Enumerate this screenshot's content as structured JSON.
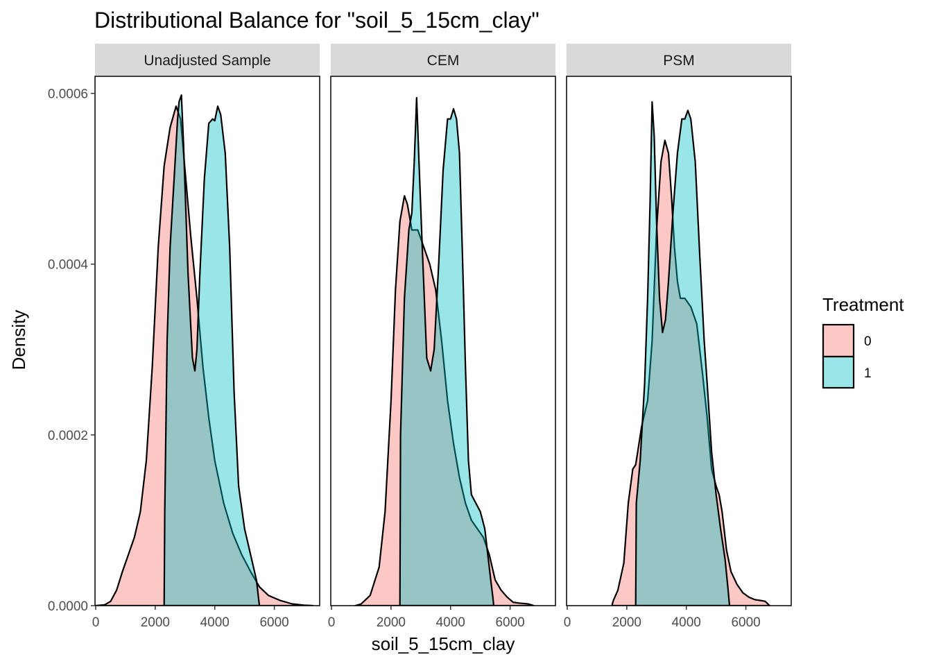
{
  "chart_data": {
    "type": "area",
    "subtype": "density",
    "title": "Distributional Balance for \"soil_5_15cm_clay\"",
    "xlabel": "soil_5_15cm_clay",
    "ylabel": "Density",
    "xlim": [
      0,
      7500
    ],
    "ylim": [
      0,
      0.00062
    ],
    "x_ticks": [
      0,
      2000,
      4000,
      6000
    ],
    "x_tick_labels": [
      "0",
      "2000",
      "4000",
      "6000"
    ],
    "y_ticks": [
      0,
      0.0002,
      0.0004,
      0.0006
    ],
    "y_tick_labels": [
      "0.0000",
      "0.0002",
      "0.0004",
      "0.0006"
    ],
    "grid": false,
    "legend": {
      "title": "Treatment",
      "position": "right",
      "entries": [
        {
          "label": "0",
          "color": "#F8766D"
        },
        {
          "label": "1",
          "color": "#00BFC4"
        }
      ]
    },
    "fill_alpha": 0.4,
    "panels": [
      {
        "name": "Unadjusted Sample",
        "series": [
          {
            "name": "0",
            "color": "#F8766D",
            "points": [
              [
                0,
                0
              ],
              [
                300,
                1e-06
              ],
              [
                500,
                5e-06
              ],
              [
                700,
                1.8e-05
              ],
              [
                900,
                4e-05
              ],
              [
                1100,
                6e-05
              ],
              [
                1300,
                8e-05
              ],
              [
                1500,
                0.00011
              ],
              [
                1700,
                0.00017
              ],
              [
                1900,
                0.00028
              ],
              [
                2100,
                0.00042
              ],
              [
                2300,
                0.000515
              ],
              [
                2500,
                0.00056
              ],
              [
                2700,
                0.000585
              ],
              [
                2850,
                0.00057
              ],
              [
                3000,
                0.00051
              ],
              [
                3200,
                0.00043
              ],
              [
                3400,
                0.00036
              ],
              [
                3600,
                0.00028
              ],
              [
                3800,
                0.00022
              ],
              [
                4000,
                0.00017
              ],
              [
                4300,
                0.00012
              ],
              [
                4600,
                8.5e-05
              ],
              [
                4900,
                6e-05
              ],
              [
                5200,
                4e-05
              ],
              [
                5500,
                2.2e-05
              ],
              [
                5800,
                1.2e-05
              ],
              [
                6200,
                6e-06
              ],
              [
                6600,
                2e-06
              ],
              [
                7000,
                5e-07
              ],
              [
                7300,
                0
              ]
            ]
          },
          {
            "name": "1",
            "color": "#00BFC4",
            "points": [
              [
                2300,
                0
              ],
              [
                2320,
                0.00011
              ],
              [
                2400,
                0.00031
              ],
              [
                2500,
                0.00042
              ],
              [
                2650,
                0.00051
              ],
              [
                2750,
                0.00057
              ],
              [
                2800,
                0.00059
              ],
              [
                2880,
                0.000598
              ],
              [
                2950,
                0.00054
              ],
              [
                3100,
                0.00039
              ],
              [
                3250,
                0.00029
              ],
              [
                3330,
                0.000275
              ],
              [
                3400,
                0.0003
              ],
              [
                3500,
                0.00039
              ],
              [
                3650,
                0.0005
              ],
              [
                3800,
                0.000565
              ],
              [
                3930,
                0.00057
              ],
              [
                4000,
                0.000568
              ],
              [
                4100,
                0.000585
              ],
              [
                4200,
                0.000575
              ],
              [
                4350,
                0.00053
              ],
              [
                4500,
                0.00042
              ],
              [
                4650,
                0.00025
              ],
              [
                4800,
                0.00014
              ],
              [
                5000,
                9e-05
              ],
              [
                5200,
                6e-05
              ],
              [
                5400,
                3e-05
              ],
              [
                5500,
                0
              ]
            ]
          }
        ]
      },
      {
        "name": "CEM",
        "series": [
          {
            "name": "0",
            "color": "#F8766D",
            "points": [
              [
                800,
                0
              ],
              [
                1000,
                2e-06
              ],
              [
                1300,
                1.2e-05
              ],
              [
                1600,
                4.5e-05
              ],
              [
                1800,
                0.00011
              ],
              [
                2000,
                0.00024
              ],
              [
                2150,
                0.00037
              ],
              [
                2300,
                0.00045
              ],
              [
                2450,
                0.00048
              ],
              [
                2550,
                0.00047
              ],
              [
                2700,
                0.00044
              ],
              [
                2900,
                0.00044
              ],
              [
                3100,
                0.00042
              ],
              [
                3300,
                0.0004
              ],
              [
                3500,
                0.00037
              ],
              [
                3700,
                0.00031
              ],
              [
                3900,
                0.00024
              ],
              [
                4100,
                0.00019
              ],
              [
                4300,
                0.00015
              ],
              [
                4500,
                0.00012
              ],
              [
                4700,
                0.0001
              ],
              [
                4900,
                9e-05
              ],
              [
                5100,
                8e-05
              ],
              [
                5300,
                6e-05
              ],
              [
                5500,
                3e-05
              ],
              [
                5700,
                1.8e-05
              ],
              [
                5900,
                1e-05
              ],
              [
                6100,
                4e-06
              ],
              [
                6300,
                3e-06
              ],
              [
                6600,
                2e-06
              ],
              [
                6800,
                0
              ]
            ]
          },
          {
            "name": "1",
            "color": "#00BFC4",
            "points": [
              [
                2300,
                0
              ],
              [
                2320,
                0.0002
              ],
              [
                2450,
                0.00036
              ],
              [
                2600,
                0.00044
              ],
              [
                2700,
                0.00046
              ],
              [
                2780,
                0.00052
              ],
              [
                2860,
                0.000595
              ],
              [
                2940,
                0.00052
              ],
              [
                3060,
                0.00041
              ],
              [
                3200,
                0.00029
              ],
              [
                3330,
                0.000275
              ],
              [
                3450,
                0.0003
              ],
              [
                3600,
                0.0004
              ],
              [
                3750,
                0.00051
              ],
              [
                3900,
                0.00057
              ],
              [
                4000,
                0.00057
              ],
              [
                4100,
                0.000582
              ],
              [
                4200,
                0.00057
              ],
              [
                4300,
                0.00053
              ],
              [
                4400,
                0.00041
              ],
              [
                4500,
                0.00028
              ],
              [
                4600,
                0.00017
              ],
              [
                4700,
                0.00013
              ],
              [
                4850,
                0.00012
              ],
              [
                5000,
                0.00011
              ],
              [
                5150,
                9e-05
              ],
              [
                5250,
                6e-05
              ],
              [
                5350,
                3e-05
              ],
              [
                5420,
                1e-05
              ],
              [
                5450,
                0
              ]
            ]
          }
        ]
      },
      {
        "name": "PSM",
        "series": [
          {
            "name": "0",
            "color": "#F8766D",
            "points": [
              [
                1500,
                0
              ],
              [
                1550,
                6e-06
              ],
              [
                1700,
                1.8e-05
              ],
              [
                1900,
                5e-05
              ],
              [
                2050,
                0.00012
              ],
              [
                2200,
                0.00016
              ],
              [
                2300,
                0.000165
              ],
              [
                2500,
                0.00021
              ],
              [
                2700,
                0.00024
              ],
              [
                2850,
                0.00031
              ],
              [
                3000,
                0.00044
              ],
              [
                3150,
                0.00052
              ],
              [
                3280,
                0.000545
              ],
              [
                3400,
                0.00053
              ],
              [
                3500,
                0.00048
              ],
              [
                3600,
                0.00042
              ],
              [
                3700,
                0.00038
              ],
              [
                3800,
                0.00036
              ],
              [
                3950,
                0.00036
              ],
              [
                4150,
                0.00035
              ],
              [
                4350,
                0.00033
              ],
              [
                4550,
                0.00027
              ],
              [
                4700,
                0.00022
              ],
              [
                4850,
                0.00016
              ],
              [
                5000,
                0.00014
              ],
              [
                5100,
                0.00013
              ],
              [
                5200,
                0.00011
              ],
              [
                5350,
                6.5e-05
              ],
              [
                5500,
                4e-05
              ],
              [
                5700,
                2.5e-05
              ],
              [
                5900,
                1.5e-05
              ],
              [
                6100,
                1e-05
              ],
              [
                6300,
                7e-06
              ],
              [
                6500,
                6e-06
              ],
              [
                6650,
                5e-06
              ],
              [
                6800,
                0
              ]
            ]
          },
          {
            "name": "1",
            "color": "#00BFC4",
            "points": [
              [
                2300,
                0
              ],
              [
                2320,
                0.00012
              ],
              [
                2450,
                0.00017
              ],
              [
                2600,
                0.00026
              ],
              [
                2700,
                0.00036
              ],
              [
                2780,
                0.00047
              ],
              [
                2850,
                0.00059
              ],
              [
                2920,
                0.00055
              ],
              [
                3000,
                0.00045
              ],
              [
                3100,
                0.00036
              ],
              [
                3200,
                0.00032
              ],
              [
                3300,
                0.000335
              ],
              [
                3400,
                0.00038
              ],
              [
                3550,
                0.00046
              ],
              [
                3700,
                0.00053
              ],
              [
                3850,
                0.00057
              ],
              [
                3950,
                0.00057
              ],
              [
                4050,
                0.00058
              ],
              [
                4150,
                0.00057
              ],
              [
                4300,
                0.00052
              ],
              [
                4450,
                0.00041
              ],
              [
                4600,
                0.00031
              ],
              [
                4700,
                0.00026
              ],
              [
                4850,
                0.00018
              ],
              [
                5000,
                0.00013
              ],
              [
                5150,
                9e-05
              ],
              [
                5300,
                5.5e-05
              ],
              [
                5400,
                2e-05
              ],
              [
                5450,
                0
              ]
            ]
          }
        ]
      }
    ]
  }
}
